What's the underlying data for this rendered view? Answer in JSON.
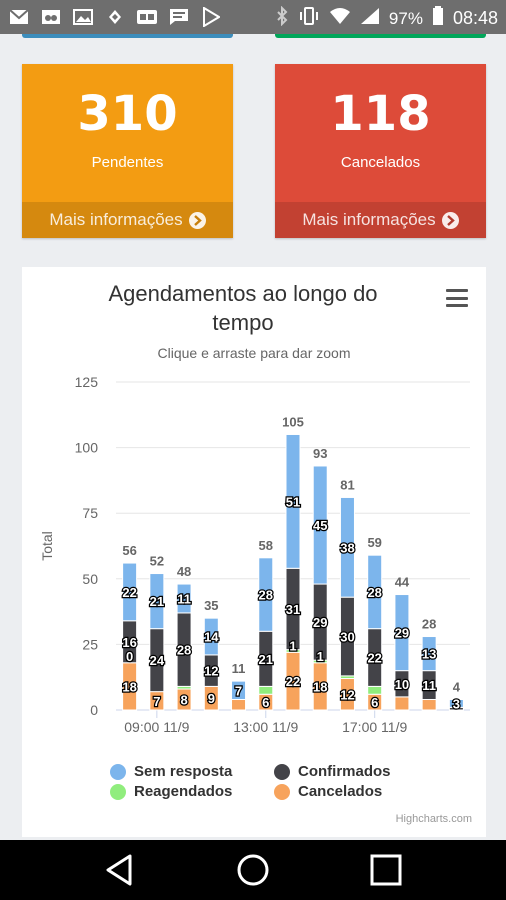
{
  "status_bar": {
    "battery": "97%",
    "time": "08:48"
  },
  "cards": [
    {
      "value": "310",
      "label": "Pendentes",
      "link": "Mais informações",
      "color": "#f39c12"
    },
    {
      "value": "118",
      "label": "Cancelados",
      "link": "Mais informações",
      "color": "#dd4b39"
    }
  ],
  "chart_title": "Agendamentos ao longo do tempo",
  "chart_subtitle": "Clique e arraste para dar zoom",
  "credits": "Highcharts.com",
  "chart_data": {
    "type": "bar",
    "stacked": true,
    "title": "Agendamentos ao longo do tempo",
    "subtitle": "Clique e arraste para dar zoom",
    "ylabel": "Total",
    "ylim": [
      0,
      125
    ],
    "yticks": [
      0,
      25,
      50,
      75,
      100,
      125
    ],
    "x_tick_labels": [
      {
        "label": "09:00 11/9",
        "index": 1
      },
      {
        "label": "13:00 11/9",
        "index": 5
      },
      {
        "label": "17:00 11/9",
        "index": 9
      }
    ],
    "totals": [
      56,
      52,
      48,
      35,
      11,
      58,
      105,
      93,
      81,
      59,
      44,
      28,
      4
    ],
    "series": [
      {
        "name": "Cancelados",
        "color": "#f7a35c",
        "values": [
          18,
          7,
          8,
          9,
          4,
          6,
          22,
          18,
          12,
          6,
          5,
          4,
          0
        ]
      },
      {
        "name": "Reagendados",
        "color": "#90ed7d",
        "values": [
          0,
          0,
          1,
          0,
          0,
          3,
          1,
          1,
          1,
          3,
          0,
          0,
          0
        ]
      },
      {
        "name": "Confirmados",
        "color": "#434348",
        "values": [
          16,
          24,
          28,
          12,
          0,
          21,
          31,
          29,
          30,
          22,
          10,
          11,
          1
        ]
      },
      {
        "name": "Sem resposta",
        "color": "#7cb5ec",
        "values": [
          22,
          21,
          11,
          14,
          7,
          28,
          51,
          45,
          38,
          28,
          29,
          13,
          3
        ]
      }
    ],
    "data_labels": [
      [
        "18",
        null,
        "16",
        "22"
      ],
      [
        "7",
        null,
        "24",
        "21"
      ],
      [
        "8",
        null,
        "28",
        "11"
      ],
      [
        "9",
        null,
        "12",
        "14"
      ],
      [
        null,
        null,
        null,
        "7"
      ],
      [
        "6",
        null,
        "21",
        "28"
      ],
      [
        "22",
        null,
        "31",
        "51"
      ],
      [
        "18",
        null,
        "29",
        "45"
      ],
      [
        "12",
        null,
        "30",
        "38"
      ],
      [
        "6",
        null,
        "22",
        "28"
      ],
      [
        null,
        null,
        "10",
        "29"
      ],
      [
        null,
        null,
        "11",
        "13"
      ],
      [
        null,
        null,
        null,
        "3"
      ]
    ],
    "inner_labels": [
      {
        "index": 0,
        "text": "0"
      },
      {
        "index": 6,
        "text": "1"
      },
      {
        "index": 7,
        "text": "1"
      }
    ],
    "legend": [
      "Sem resposta",
      "Confirmados",
      "Reagendados",
      "Cancelados"
    ],
    "legend_placement": "bottom"
  }
}
